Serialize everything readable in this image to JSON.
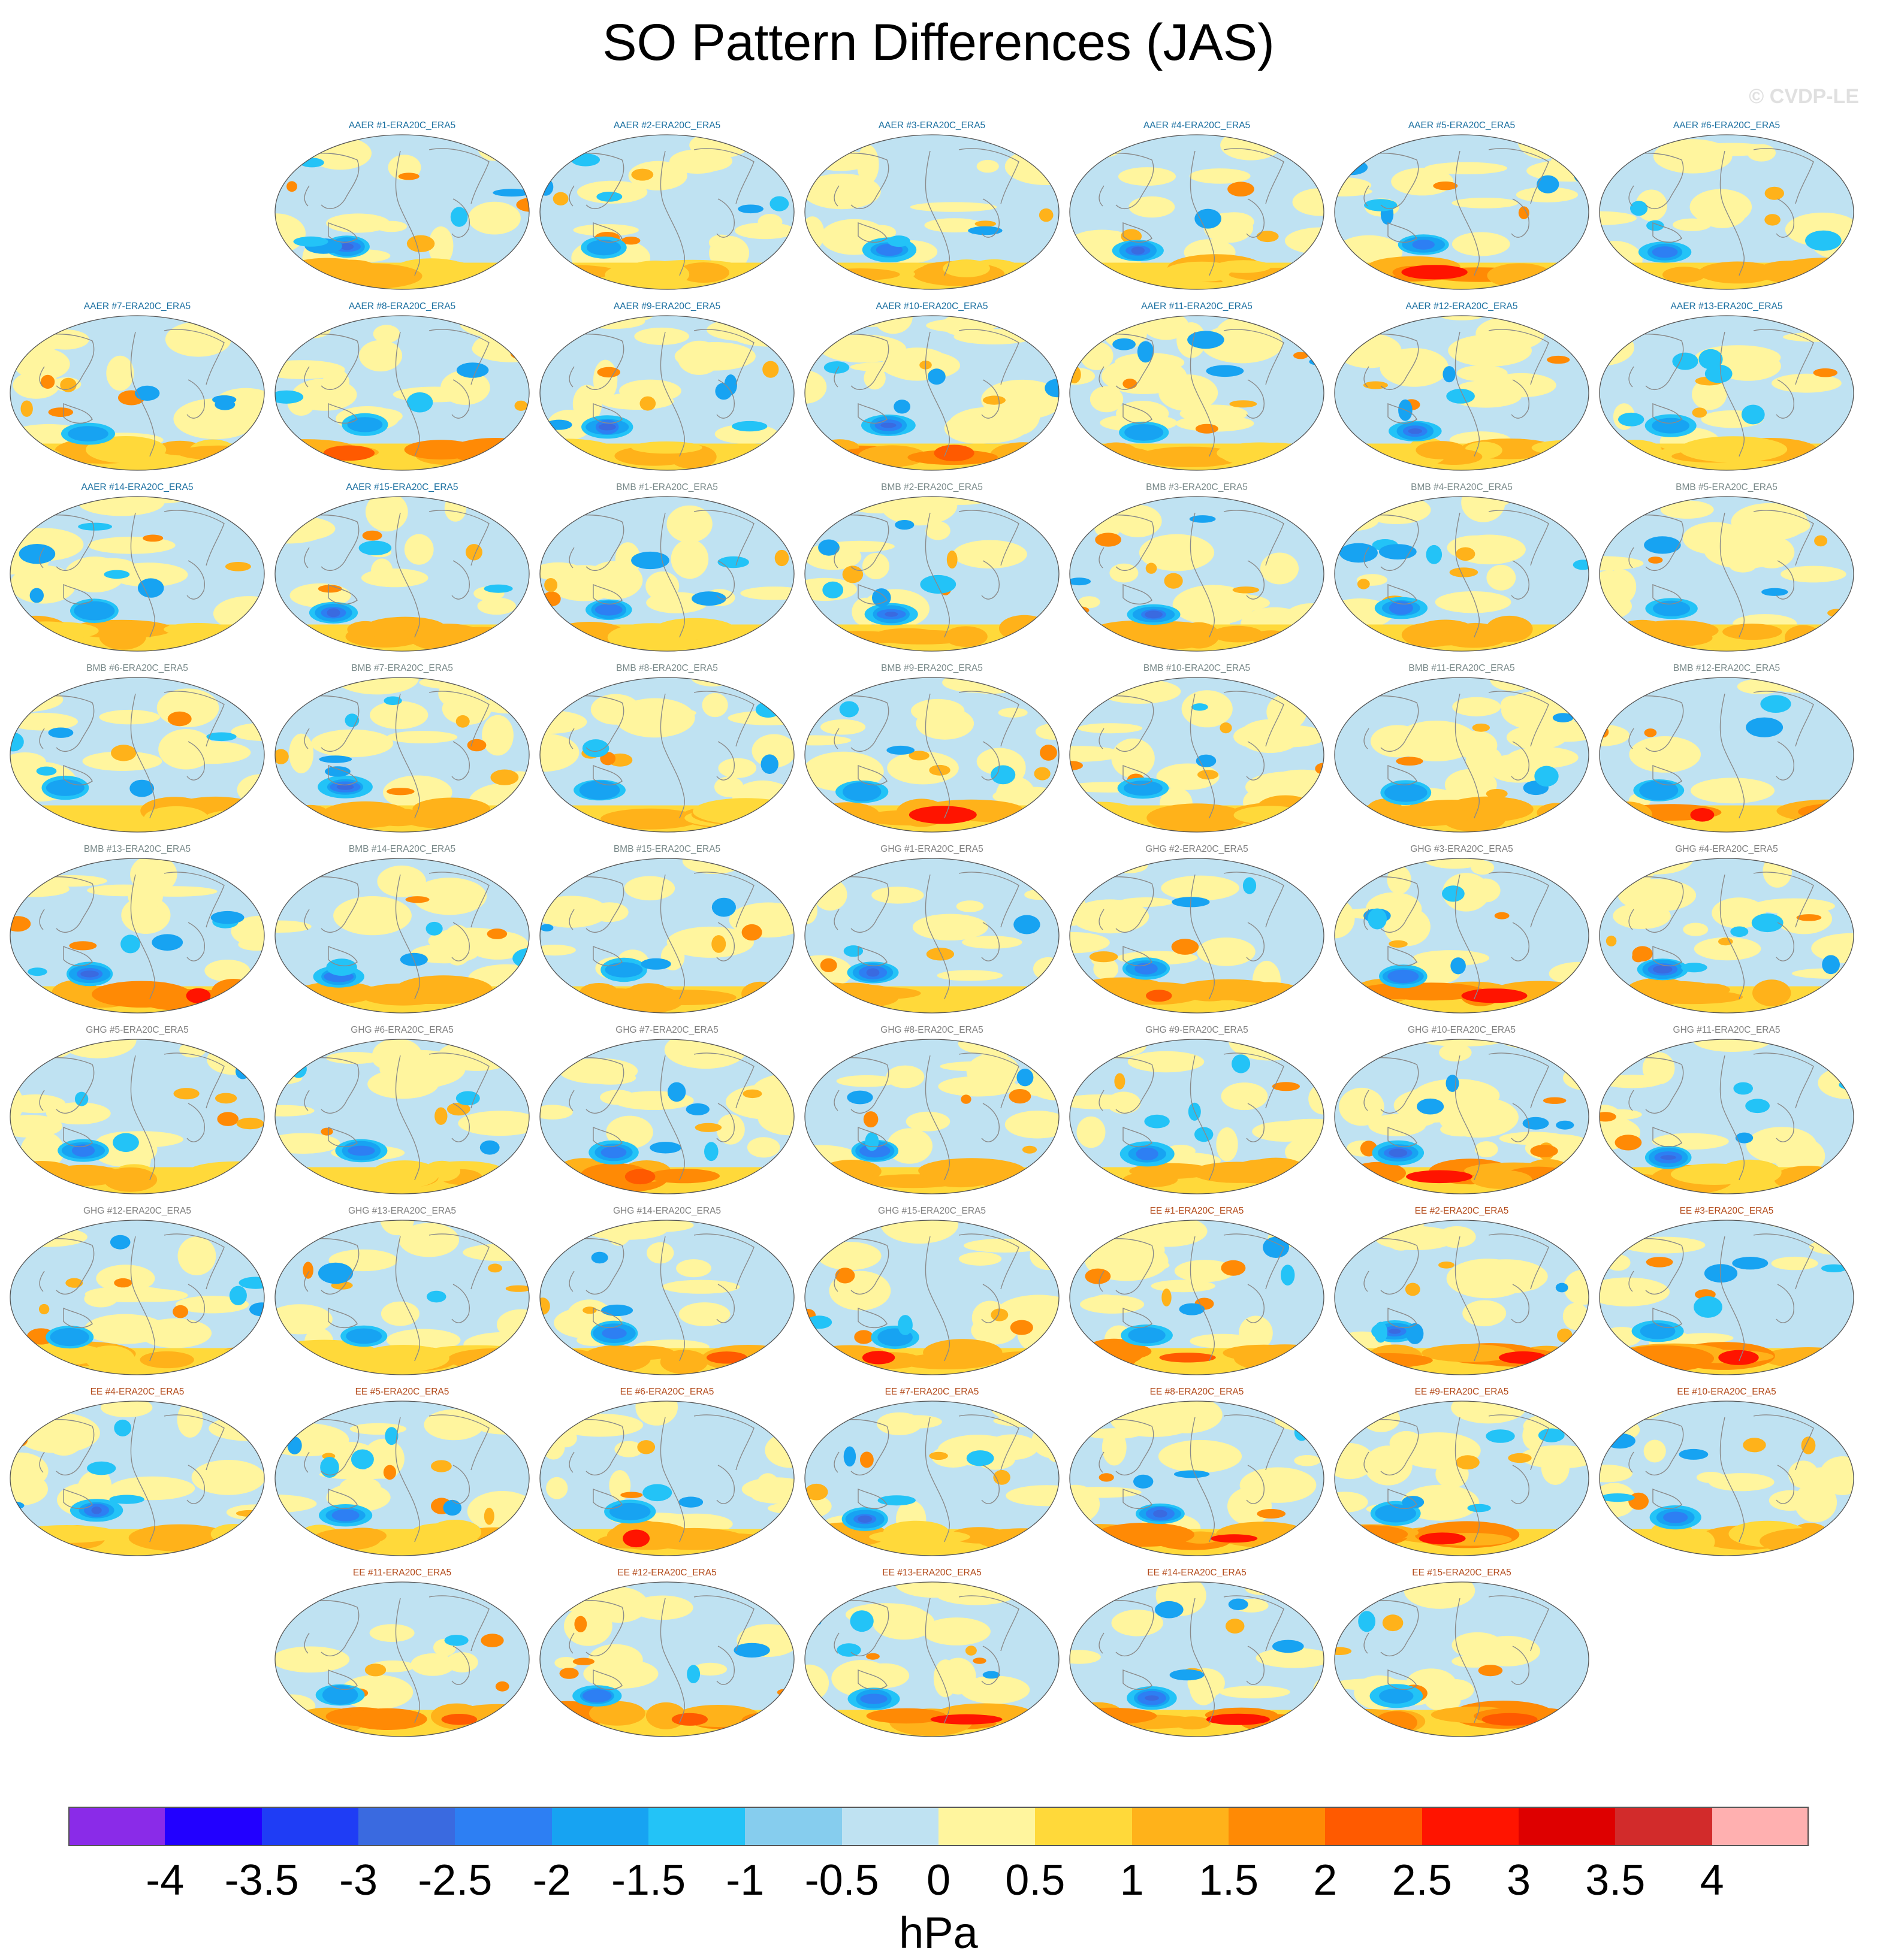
{
  "title": "SO Pattern Differences (JAS)",
  "copyright": "© CVDP-LE",
  "colorbar": {
    "units": "hPa",
    "tick_labels": [
      "-4",
      "-3.5",
      "-3",
      "-2.5",
      "-2",
      "-1.5",
      "-1",
      "-0.5",
      "0",
      "0.5",
      "1",
      "1.5",
      "2",
      "2.5",
      "3",
      "3.5",
      "4"
    ],
    "colors": [
      "#8a2be8",
      "#2200ff",
      "#1f3df5",
      "#3a6ae0",
      "#2d7ff3",
      "#17a3f2",
      "#23c3f7",
      "#86cdee",
      "#bfe2f2",
      "#fff59e",
      "#ffd93a",
      "#ffb21a",
      "#ff8a05",
      "#ff5a00",
      "#ff1400",
      "#de0000",
      "#d22b2b",
      "#ffb0b0"
    ]
  },
  "label_colors": {
    "AAER": "#1a6fa0",
    "BMB": "#7a8a8a",
    "GHG": "#808080",
    "EE": "#b34a1a"
  },
  "panels": [
    {
      "label": "AAER #1-ERA20C_ERA5",
      "group": "AAER"
    },
    {
      "label": "AAER #2-ERA20C_ERA5",
      "group": "AAER"
    },
    {
      "label": "AAER #3-ERA20C_ERA5",
      "group": "AAER"
    },
    {
      "label": "AAER #4-ERA20C_ERA5",
      "group": "AAER"
    },
    {
      "label": "AAER #5-ERA20C_ERA5",
      "group": "AAER"
    },
    {
      "label": "AAER #6-ERA20C_ERA5",
      "group": "AAER"
    },
    {
      "label": "AAER #7-ERA20C_ERA5",
      "group": "AAER"
    },
    {
      "label": "AAER #8-ERA20C_ERA5",
      "group": "AAER"
    },
    {
      "label": "AAER #9-ERA20C_ERA5",
      "group": "AAER"
    },
    {
      "label": "AAER #10-ERA20C_ERA5",
      "group": "AAER"
    },
    {
      "label": "AAER #11-ERA20C_ERA5",
      "group": "AAER"
    },
    {
      "label": "AAER #12-ERA20C_ERA5",
      "group": "AAER"
    },
    {
      "label": "AAER #13-ERA20C_ERA5",
      "group": "AAER"
    },
    {
      "label": "AAER #14-ERA20C_ERA5",
      "group": "AAER"
    },
    {
      "label": "AAER #15-ERA20C_ERA5",
      "group": "AAER"
    },
    {
      "label": "BMB #1-ERA20C_ERA5",
      "group": "BMB"
    },
    {
      "label": "BMB #2-ERA20C_ERA5",
      "group": "BMB"
    },
    {
      "label": "BMB #3-ERA20C_ERA5",
      "group": "BMB"
    },
    {
      "label": "BMB #4-ERA20C_ERA5",
      "group": "BMB"
    },
    {
      "label": "BMB #5-ERA20C_ERA5",
      "group": "BMB"
    },
    {
      "label": "BMB #6-ERA20C_ERA5",
      "group": "BMB"
    },
    {
      "label": "BMB #7-ERA20C_ERA5",
      "group": "BMB"
    },
    {
      "label": "BMB #8-ERA20C_ERA5",
      "group": "BMB"
    },
    {
      "label": "BMB #9-ERA20C_ERA5",
      "group": "BMB"
    },
    {
      "label": "BMB #10-ERA20C_ERA5",
      "group": "BMB"
    },
    {
      "label": "BMB #11-ERA20C_ERA5",
      "group": "BMB"
    },
    {
      "label": "BMB #12-ERA20C_ERA5",
      "group": "BMB"
    },
    {
      "label": "BMB #13-ERA20C_ERA5",
      "group": "BMB"
    },
    {
      "label": "BMB #14-ERA20C_ERA5",
      "group": "BMB"
    },
    {
      "label": "BMB #15-ERA20C_ERA5",
      "group": "BMB"
    },
    {
      "label": "GHG #1-ERA20C_ERA5",
      "group": "GHG"
    },
    {
      "label": "GHG #2-ERA20C_ERA5",
      "group": "GHG"
    },
    {
      "label": "GHG #3-ERA20C_ERA5",
      "group": "GHG"
    },
    {
      "label": "GHG #4-ERA20C_ERA5",
      "group": "GHG"
    },
    {
      "label": "GHG #5-ERA20C_ERA5",
      "group": "GHG"
    },
    {
      "label": "GHG #6-ERA20C_ERA5",
      "group": "GHG"
    },
    {
      "label": "GHG #7-ERA20C_ERA5",
      "group": "GHG"
    },
    {
      "label": "GHG #8-ERA20C_ERA5",
      "group": "GHG"
    },
    {
      "label": "GHG #9-ERA20C_ERA5",
      "group": "GHG"
    },
    {
      "label": "GHG #10-ERA20C_ERA5",
      "group": "GHG"
    },
    {
      "label": "GHG #11-ERA20C_ERA5",
      "group": "GHG"
    },
    {
      "label": "GHG #12-ERA20C_ERA5",
      "group": "GHG"
    },
    {
      "label": "GHG #13-ERA20C_ERA5",
      "group": "GHG"
    },
    {
      "label": "GHG #14-ERA20C_ERA5",
      "group": "GHG"
    },
    {
      "label": "GHG #15-ERA20C_ERA5",
      "group": "GHG"
    },
    {
      "label": "EE #1-ERA20C_ERA5",
      "group": "EE"
    },
    {
      "label": "EE #2-ERA20C_ERA5",
      "group": "EE"
    },
    {
      "label": "EE #3-ERA20C_ERA5",
      "group": "EE"
    },
    {
      "label": "EE #4-ERA20C_ERA5",
      "group": "EE"
    },
    {
      "label": "EE #5-ERA20C_ERA5",
      "group": "EE"
    },
    {
      "label": "EE #6-ERA20C_ERA5",
      "group": "EE"
    },
    {
      "label": "EE #7-ERA20C_ERA5",
      "group": "EE"
    },
    {
      "label": "EE #8-ERA20C_ERA5",
      "group": "EE"
    },
    {
      "label": "EE #9-ERA20C_ERA5",
      "group": "EE"
    },
    {
      "label": "EE #10-ERA20C_ERA5",
      "group": "EE"
    },
    {
      "label": "EE #11-ERA20C_ERA5",
      "group": "EE"
    },
    {
      "label": "EE #12-ERA20C_ERA5",
      "group": "EE"
    },
    {
      "label": "EE #13-ERA20C_ERA5",
      "group": "EE"
    },
    {
      "label": "EE #14-ERA20C_ERA5",
      "group": "EE"
    },
    {
      "label": "EE #15-ERA20C_ERA5",
      "group": "EE"
    }
  ]
}
